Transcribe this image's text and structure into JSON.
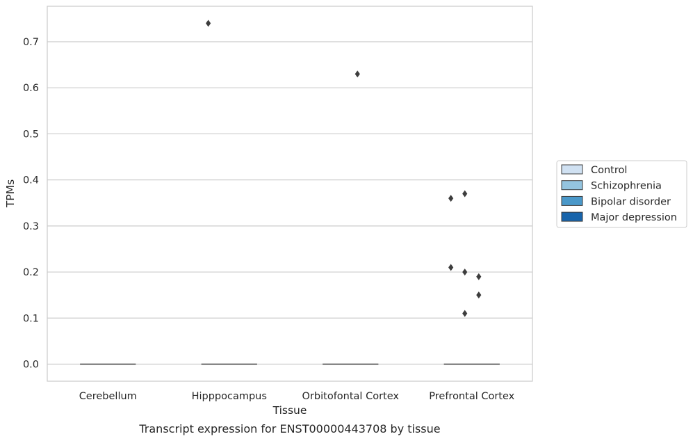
{
  "chart_data": {
    "type": "box",
    "title": "",
    "caption": "Transcript expression for ENST00000443708 by tissue",
    "xlabel": "Tissue",
    "ylabel": "TPMs",
    "ylim": [
      -0.037,
      0.777
    ],
    "yticks": [
      0.0,
      0.1,
      0.2,
      0.3,
      0.4,
      0.5,
      0.6,
      0.7
    ],
    "ytick_labels": [
      "0.0",
      "0.1",
      "0.2",
      "0.3",
      "0.4",
      "0.5",
      "0.6",
      "0.7"
    ],
    "grid": "horizontal",
    "legend_placement": "right",
    "categories": [
      "Cerebellum",
      "Hipppocampus",
      "Orbitofontal Cortex",
      "Prefrontal Cortex"
    ],
    "series": [
      {
        "name": "Control",
        "color": "#d0e1f2"
      },
      {
        "name": "Schizophrenia",
        "color": "#94c4df"
      },
      {
        "name": "Bipolar disorder",
        "color": "#4a98c9"
      },
      {
        "name": "Major depression",
        "color": "#1764ab"
      }
    ],
    "boxes": [
      {
        "category": "Cerebellum",
        "median": 0.0,
        "q1": 0.0,
        "q3": 0.0
      },
      {
        "category": "Hipppocampus",
        "median": 0.0,
        "q1": 0.0,
        "q3": 0.0
      },
      {
        "category": "Orbitofontal Cortex",
        "median": 0.0,
        "q1": 0.0,
        "q3": 0.0
      },
      {
        "category": "Prefrontal Cortex",
        "median": 0.0,
        "q1": 0.0,
        "q3": 0.0
      }
    ],
    "outliers": [
      {
        "category": "Hipppocampus",
        "series": "Control",
        "value": 0.74
      },
      {
        "category": "Orbitofontal Cortex",
        "series": "Bipolar disorder",
        "value": 0.63
      },
      {
        "category": "Prefrontal Cortex",
        "series": "Control",
        "value": 0.36
      },
      {
        "category": "Prefrontal Cortex",
        "series": "Control",
        "value": 0.21
      },
      {
        "category": "Prefrontal Cortex",
        "series": "Schizophrenia",
        "value": 0.37
      },
      {
        "category": "Prefrontal Cortex",
        "series": "Schizophrenia",
        "value": 0.2
      },
      {
        "category": "Prefrontal Cortex",
        "series": "Schizophrenia",
        "value": 0.11
      },
      {
        "category": "Prefrontal Cortex",
        "series": "Bipolar disorder",
        "value": 0.19
      },
      {
        "category": "Prefrontal Cortex",
        "series": "Bipolar disorder",
        "value": 0.15
      }
    ]
  }
}
